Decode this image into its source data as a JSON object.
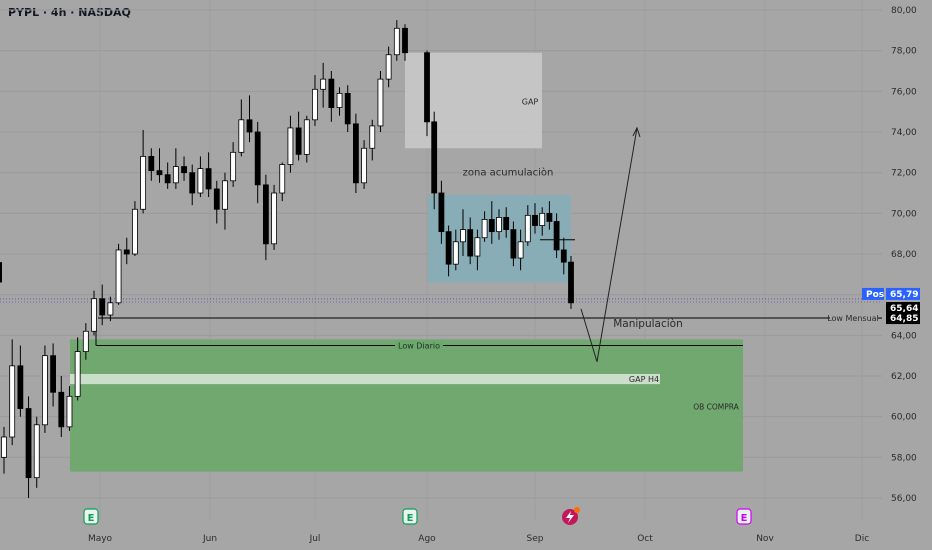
{
  "header": {
    "symbol_line": "PYPL · 4h · NASDAQ"
  },
  "chart_data": {
    "type": "candlestick",
    "title": "PYPL · 4h · NASDAQ",
    "ylim": [
      55,
      80.5
    ],
    "y_ticks": [
      "80,00",
      "78,00",
      "76,00",
      "74,00",
      "72,00",
      "70,00",
      "68,00",
      "66,00",
      "64,00",
      "62,00",
      "60,00",
      "58,00",
      "56,00"
    ],
    "x_ticks": [
      "Mayo",
      "Jun",
      "Jul",
      "Ago",
      "Sep",
      "Oct",
      "Nov",
      "Dic"
    ],
    "price_tags": [
      {
        "label": "Pos",
        "value": "65,79",
        "color": "#2962ff"
      },
      {
        "label": "",
        "value": "65,64",
        "color": "#000000"
      },
      {
        "label": "",
        "value": "64,85",
        "color": "#000000"
      }
    ],
    "levels": [
      {
        "name": "Low Mensual",
        "price": 64.85
      },
      {
        "name": "Low Diario",
        "price": 63.5
      },
      {
        "name": "dotted_last",
        "price": 65.79
      }
    ],
    "zones": [
      {
        "label": "GAP",
        "y_top": 77.9,
        "y_bottom": 73.2,
        "color": "#c9c9c9"
      },
      {
        "label": "zona acumulaciòn",
        "y_top": 70.9,
        "y_bottom": 66.6,
        "color": "#86aeb8"
      },
      {
        "label": "OB COMPRA",
        "y_top": 63.8,
        "y_bottom": 57.3,
        "color": "#6aa96a"
      },
      {
        "label": "GAP H4",
        "y_top": 62.1,
        "y_bottom": 61.6,
        "color": "#d9e8d9"
      }
    ],
    "annotations": [
      "Manipulaciòn"
    ],
    "earnings_markers": [
      "E",
      "E",
      "E"
    ],
    "close": 65.64,
    "series": [
      {
        "name": "PYPL",
        "values": [
          [
            58.0,
            59.5,
            57.2,
            59.0
          ],
          [
            59.0,
            63.8,
            58.6,
            62.5
          ],
          [
            62.5,
            63.5,
            60.0,
            60.4
          ],
          [
            60.4,
            61.0,
            56.0,
            57.0
          ],
          [
            57.0,
            60.0,
            56.5,
            59.6
          ],
          [
            59.6,
            63.5,
            59.2,
            63.0
          ],
          [
            63.0,
            63.6,
            60.5,
            61.2
          ],
          [
            61.2,
            62.0,
            59.0,
            59.5
          ],
          [
            59.5,
            61.5,
            59.3,
            61.0
          ],
          [
            61.0,
            63.9,
            60.8,
            63.2
          ],
          [
            63.2,
            64.6,
            62.8,
            64.2
          ],
          [
            64.2,
            66.2,
            64.0,
            65.8
          ],
          [
            65.8,
            66.5,
            64.5,
            65.0
          ],
          [
            65.0,
            65.9,
            64.7,
            65.6
          ],
          [
            65.6,
            68.5,
            65.5,
            68.2
          ],
          [
            68.2,
            68.8,
            67.5,
            68.0
          ],
          [
            68.0,
            70.6,
            67.9,
            70.2
          ],
          [
            70.2,
            74.1,
            70.0,
            72.8
          ],
          [
            72.8,
            73.2,
            71.6,
            72.1
          ],
          [
            72.1,
            73.2,
            71.5,
            71.9
          ],
          [
            71.9,
            72.5,
            71.2,
            71.5
          ],
          [
            71.5,
            73.2,
            71.2,
            72.3
          ],
          [
            72.3,
            72.8,
            71.6,
            72.0
          ],
          [
            72.0,
            72.4,
            70.4,
            71.0
          ],
          [
            71.0,
            72.8,
            70.8,
            72.2
          ],
          [
            72.2,
            73.0,
            70.8,
            71.2
          ],
          [
            71.2,
            71.6,
            69.5,
            70.2
          ],
          [
            70.2,
            72.0,
            69.2,
            71.6
          ],
          [
            71.6,
            73.5,
            71.3,
            73.0
          ],
          [
            73.0,
            75.6,
            72.8,
            74.6
          ],
          [
            74.6,
            75.8,
            73.5,
            74.0
          ],
          [
            74.0,
            74.5,
            70.5,
            71.4
          ],
          [
            71.4,
            71.9,
            67.7,
            68.5
          ],
          [
            68.5,
            71.4,
            68.2,
            71.0
          ],
          [
            71.0,
            72.5,
            70.6,
            72.4
          ],
          [
            72.4,
            74.8,
            72.0,
            74.2
          ],
          [
            74.2,
            75.0,
            72.6,
            72.9
          ],
          [
            72.9,
            74.8,
            72.5,
            74.6
          ],
          [
            74.6,
            76.8,
            74.3,
            76.1
          ],
          [
            76.1,
            77.4,
            75.2,
            76.6
          ],
          [
            76.6,
            77.0,
            74.5,
            75.2
          ],
          [
            75.2,
            76.2,
            74.8,
            75.9
          ],
          [
            75.9,
            76.3,
            74.0,
            74.4
          ],
          [
            74.4,
            74.9,
            71.0,
            71.5
          ],
          [
            71.5,
            73.6,
            71.2,
            73.2
          ],
          [
            73.2,
            74.6,
            72.6,
            74.3
          ],
          [
            74.3,
            77.0,
            74.0,
            76.6
          ],
          [
            76.6,
            78.2,
            76.2,
            77.8
          ],
          [
            77.8,
            79.5,
            77.5,
            79.1
          ],
          [
            79.1,
            79.3,
            77.5,
            77.9
          ],
          [
            77.9,
            78.0,
            73.8,
            74.5
          ],
          [
            74.5,
            75.0,
            70.2,
            71.0
          ],
          [
            71.0,
            71.6,
            68.5,
            69.1
          ],
          [
            69.1,
            69.4,
            66.9,
            67.5
          ],
          [
            67.5,
            69.2,
            67.2,
            68.6
          ],
          [
            68.6,
            70.2,
            67.9,
            69.2
          ],
          [
            69.2,
            69.8,
            67.5,
            67.9
          ],
          [
            67.9,
            69.2,
            67.2,
            68.8
          ],
          [
            68.8,
            70.1,
            68.6,
            69.7
          ],
          [
            69.7,
            70.6,
            68.5,
            69.1
          ],
          [
            69.1,
            70.2,
            68.7,
            69.8
          ],
          [
            69.8,
            70.3,
            68.8,
            69.2
          ],
          [
            69.2,
            69.6,
            67.4,
            67.8
          ],
          [
            67.8,
            69.2,
            67.2,
            68.6
          ],
          [
            68.6,
            70.4,
            68.4,
            69.9
          ],
          [
            69.9,
            70.5,
            69.0,
            69.4
          ],
          [
            69.4,
            70.3,
            68.9,
            70.0
          ],
          [
            70.0,
            70.6,
            69.2,
            69.6
          ],
          [
            69.6,
            70.0,
            67.8,
            68.2
          ],
          [
            68.2,
            68.8,
            67.0,
            67.6
          ],
          [
            67.6,
            67.9,
            65.3,
            65.6
          ]
        ]
      }
    ]
  }
}
